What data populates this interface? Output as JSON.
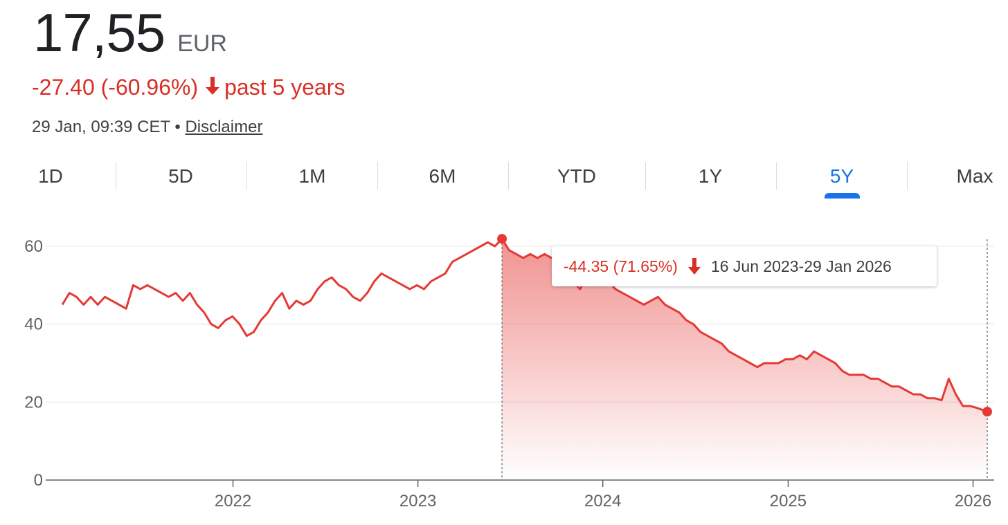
{
  "header": {
    "price": "17,55",
    "currency": "EUR",
    "change": "-27.40 (-60.96%)",
    "change_period": "past 5 years",
    "timestamp": "29 Jan, 09:39 CET •",
    "disclaimer": "Disclaimer"
  },
  "tabs": [
    {
      "label": "1D",
      "active": false
    },
    {
      "label": "5D",
      "active": false
    },
    {
      "label": "1M",
      "active": false
    },
    {
      "label": "6M",
      "active": false
    },
    {
      "label": "YTD",
      "active": false
    },
    {
      "label": "1Y",
      "active": false
    },
    {
      "label": "5Y",
      "active": true
    },
    {
      "label": "Max",
      "active": false
    }
  ],
  "tooltip": {
    "change": "-44.35 (71.65%)",
    "range": "16 Jun 2023-29 Jan 2026"
  },
  "colors": {
    "down": "#d93025",
    "line": "#e53935",
    "active_tab": "#1a73e8",
    "grid": "#eeeeee",
    "axis": "#5f6368"
  },
  "chart_data": {
    "type": "line",
    "ylim": [
      0,
      60
    ],
    "xlim": [
      "2021-01-29",
      "2026-01-29"
    ],
    "yticks": [
      0,
      20,
      40,
      60
    ],
    "xticks": [
      "2022",
      "2023",
      "2024",
      "2025",
      "2026"
    ],
    "grid": true,
    "selection": {
      "start": "2023-06-16",
      "end": "2026-01-29",
      "start_value": 61.9,
      "end_value": 17.55
    },
    "series": [
      {
        "x": [
          "2021-01-29",
          "2021-02-12",
          "2021-02-26",
          "2021-03-12",
          "2021-03-26",
          "2021-04-09",
          "2021-04-23",
          "2021-05-07",
          "2021-05-21",
          "2021-06-04",
          "2021-06-18",
          "2021-07-02",
          "2021-07-16",
          "2021-07-30",
          "2021-08-13",
          "2021-08-27",
          "2021-09-10",
          "2021-09-24",
          "2021-10-08",
          "2021-10-22",
          "2021-11-05",
          "2021-11-19",
          "2021-12-03",
          "2021-12-17",
          "2021-12-31",
          "2022-01-14",
          "2022-01-28",
          "2022-02-11",
          "2022-02-25",
          "2022-03-11",
          "2022-03-25",
          "2022-04-08",
          "2022-04-22",
          "2022-05-06",
          "2022-05-20",
          "2022-06-03",
          "2022-06-17",
          "2022-07-01",
          "2022-07-15",
          "2022-07-29",
          "2022-08-12",
          "2022-08-26",
          "2022-09-09",
          "2022-09-23",
          "2022-10-07",
          "2022-10-21",
          "2022-11-04",
          "2022-11-18",
          "2022-12-02",
          "2022-12-16",
          "2022-12-30",
          "2023-01-13",
          "2023-01-27",
          "2023-02-10",
          "2023-02-24",
          "2023-03-10",
          "2023-03-24",
          "2023-04-07",
          "2023-04-21",
          "2023-05-05",
          "2023-05-19",
          "2023-06-02",
          "2023-06-16",
          "2023-06-30",
          "2023-07-14",
          "2023-07-28",
          "2023-08-11",
          "2023-08-25",
          "2023-09-08",
          "2023-09-22",
          "2023-10-06",
          "2023-10-20",
          "2023-11-03",
          "2023-11-17",
          "2023-12-01",
          "2023-12-15",
          "2023-12-29",
          "2024-01-12",
          "2024-01-26",
          "2024-02-09",
          "2024-02-23",
          "2024-03-08",
          "2024-03-22",
          "2024-04-05",
          "2024-04-19",
          "2024-05-03",
          "2024-05-17",
          "2024-05-31",
          "2024-06-14",
          "2024-06-28",
          "2024-07-12",
          "2024-07-26",
          "2024-08-09",
          "2024-08-23",
          "2024-09-06",
          "2024-09-20",
          "2024-10-04",
          "2024-10-18",
          "2024-11-01",
          "2024-11-15",
          "2024-11-29",
          "2024-12-13",
          "2024-12-27",
          "2025-01-10",
          "2025-01-24",
          "2025-02-07",
          "2025-02-21",
          "2025-03-07",
          "2025-03-21",
          "2025-04-04",
          "2025-04-18",
          "2025-05-02",
          "2025-05-16",
          "2025-05-30",
          "2025-06-13",
          "2025-06-27",
          "2025-07-11",
          "2025-07-25",
          "2025-08-08",
          "2025-08-22",
          "2025-09-05",
          "2025-09-19",
          "2025-10-03",
          "2025-10-17",
          "2025-10-31",
          "2025-11-14",
          "2025-11-28",
          "2025-12-12",
          "2025-12-26",
          "2026-01-09",
          "2026-01-29"
        ],
        "values": [
          45,
          48,
          47,
          45,
          47,
          45,
          47,
          46,
          45,
          44,
          50,
          49,
          50,
          49,
          48,
          47,
          48,
          46,
          48,
          45,
          43,
          40,
          39,
          41,
          42,
          40,
          37,
          38,
          41,
          43,
          46,
          48,
          44,
          46,
          45,
          46,
          49,
          51,
          52,
          50,
          49,
          47,
          46,
          48,
          51,
          53,
          52,
          51,
          50,
          49,
          50,
          49,
          51,
          52,
          53,
          56,
          57,
          58,
          59,
          60,
          61,
          60,
          61.9,
          59,
          58,
          57,
          58,
          57,
          58,
          57,
          56,
          54,
          51,
          49,
          52,
          54,
          53,
          51,
          49,
          48,
          47,
          46,
          45,
          46,
          47,
          45,
          44,
          43,
          41,
          40,
          38,
          37,
          36,
          35,
          33,
          32,
          31,
          30,
          29,
          30,
          30,
          30,
          31,
          31,
          32,
          31,
          33,
          32,
          31,
          30,
          28,
          27,
          27,
          27,
          26,
          26,
          25,
          24,
          24,
          23,
          22,
          22,
          21,
          21,
          20.5,
          26,
          22,
          19,
          19,
          18.5,
          17.55
        ]
      }
    ]
  }
}
